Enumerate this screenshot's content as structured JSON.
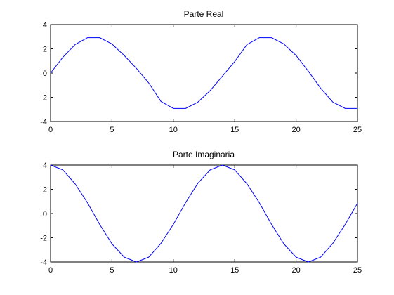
{
  "chart_data": [
    {
      "type": "line",
      "title": "Parte Real",
      "xlabel": "",
      "ylabel": "",
      "xlim": [
        0,
        25
      ],
      "ylim": [
        -4,
        4
      ],
      "x_ticks": [
        "0",
        "5",
        "10",
        "15",
        "20",
        "25"
      ],
      "y_ticks": [
        "-4",
        "-2",
        "0",
        "2",
        "4"
      ],
      "grid": false,
      "series": [
        {
          "color": "#0000ff",
          "x": [
            0,
            1,
            2,
            3,
            4,
            5,
            6,
            7,
            8,
            9,
            10,
            11,
            12,
            13,
            14,
            15,
            16,
            17,
            18,
            19,
            20,
            21,
            22,
            23,
            24,
            25
          ],
          "y": [
            0,
            1.3,
            2.35,
            2.92,
            2.92,
            2.4,
            1.45,
            0.38,
            -0.82,
            -2.35,
            -2.92,
            -2.92,
            -2.4,
            -1.45,
            -0.25,
            0.95,
            2.35,
            2.92,
            2.92,
            2.4,
            1.45,
            0.15,
            -1.25,
            -2.4,
            -2.92,
            -2.92
          ]
        }
      ]
    },
    {
      "type": "line",
      "title": "Parte Imaginaria",
      "xlabel": "",
      "ylabel": "",
      "xlim": [
        0,
        25
      ],
      "ylim": [
        -4,
        4
      ],
      "x_ticks": [
        "0",
        "5",
        "10",
        "15",
        "20",
        "25"
      ],
      "y_ticks": [
        "-4",
        "-2",
        "0",
        "2",
        "4"
      ],
      "grid": false,
      "series": [
        {
          "color": "#0000ff",
          "x": [
            0,
            1,
            2,
            3,
            4,
            5,
            6,
            7,
            8,
            9,
            10,
            11,
            12,
            13,
            14,
            15,
            16,
            17,
            18,
            19,
            20,
            21,
            22,
            23,
            24,
            25
          ],
          "y": [
            4,
            3.6,
            2.45,
            0.9,
            -0.9,
            -2.5,
            -3.6,
            -4,
            -3.6,
            -2.45,
            -0.9,
            0.9,
            2.5,
            3.6,
            4,
            3.6,
            2.45,
            0.9,
            -0.9,
            -2.5,
            -3.6,
            -4,
            -3.6,
            -2.45,
            -0.9,
            0.85
          ]
        }
      ]
    }
  ]
}
